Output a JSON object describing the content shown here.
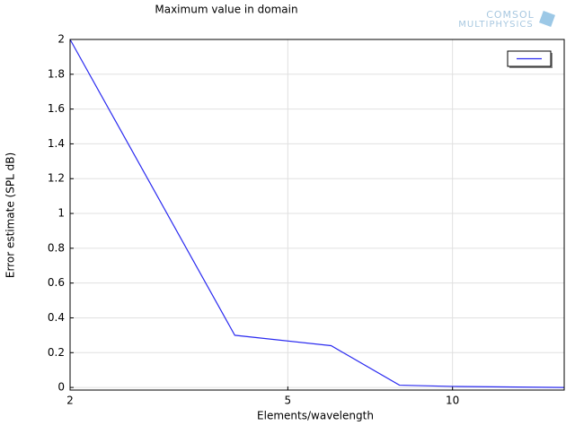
{
  "chart_data": {
    "type": "line",
    "title": "Maximum value in domain",
    "xlabel": "Elements/wavelength",
    "ylabel": "Error estimate (SPL dB)",
    "logo": [
      "COMSOL",
      "MULTIPHYSICS"
    ],
    "x": [
      2,
      4,
      6,
      8,
      10,
      16
    ],
    "series": [
      {
        "color": "#2a2af0",
        "values": [
          2.0,
          0.3,
          0.24,
          0.013,
          0.006,
          0.0
        ]
      }
    ],
    "xlim": [
      2,
      16
    ],
    "xticks": [
      2,
      5,
      10
    ],
    "xscale": "log",
    "ylim": [
      -0.015,
      2
    ],
    "yticks": [
      0,
      0.2,
      0.4,
      0.6,
      0.8,
      1,
      1.2,
      1.4,
      1.6,
      1.8,
      2
    ],
    "grid": true,
    "legend": "upper right"
  }
}
